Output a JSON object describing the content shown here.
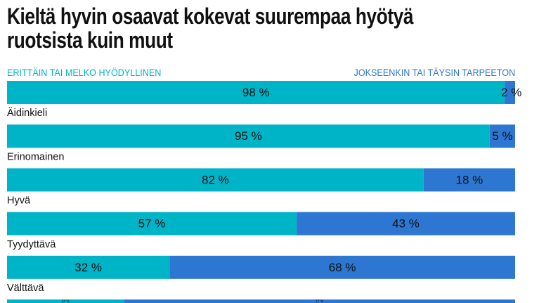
{
  "title": "Kieltä hyvin osaavat kokevat suurempaa hyötyä ruotsista kuin muut",
  "title_lines": [
    "Kieltä hyvin osaavat kokevat suurempaa hyötyä",
    "ruotsista kuin muut"
  ],
  "chart_data": {
    "type": "bar",
    "orientation": "horizontal-stacked-100",
    "categories": [
      "",
      "Äidinkieli",
      "Erinomainen",
      "Hyvä",
      "Tyydyttävä",
      "Välttävä"
    ],
    "series": [
      {
        "name": "ERITTÄIN TAI MELKO HYÖDYLLINEN",
        "values": [
          98,
          95,
          82,
          57,
          32,
          23
        ],
        "color": "#00b4c8"
      },
      {
        "name": "JOKSEENKIN TAI TÄYSIN TARPEETON",
        "values": [
          2,
          5,
          18,
          43,
          68,
          77
        ],
        "color": "#2d77d2"
      }
    ],
    "value_suffix": " %",
    "xlim": [
      0,
      100
    ],
    "legend": "top",
    "grid": false
  }
}
